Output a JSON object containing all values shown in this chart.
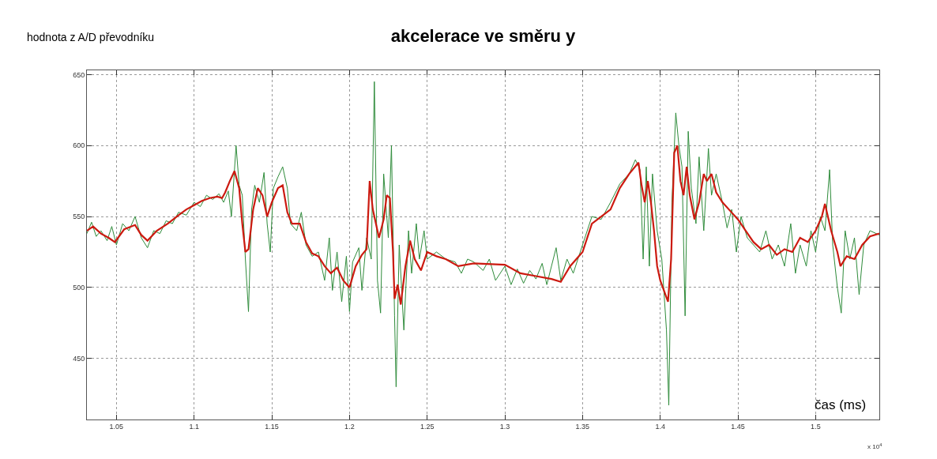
{
  "chart_data": {
    "type": "line",
    "title": "akcelerace ve směru y",
    "ylabel": "hodnota z A/D převodníku",
    "xlabel": "čas (ms)",
    "annotations": [
      "x 10$^{4}$"
    ],
    "xlim": [
      1.031,
      1.541
    ],
    "ylim": [
      407,
      653
    ],
    "xticks": [
      1.05,
      1.1,
      1.15,
      1.2,
      1.25,
      1.3,
      1.35,
      1.4,
      1.45,
      1.5
    ],
    "yticks": [
      450,
      500,
      550,
      600,
      650
    ],
    "grid": true,
    "marker": "none",
    "line_style": "solid",
    "series": [
      {
        "color": "#2e8b3a",
        "x": [
          1.031,
          1.034,
          1.037,
          1.04,
          1.044,
          1.047,
          1.05,
          1.054,
          1.058,
          1.062,
          1.066,
          1.07,
          1.074,
          1.078,
          1.082,
          1.086,
          1.09,
          1.095,
          1.1,
          1.104,
          1.108,
          1.112,
          1.116,
          1.119,
          1.122,
          1.124,
          1.127,
          1.129,
          1.131,
          1.133,
          1.135,
          1.137,
          1.139,
          1.142,
          1.145,
          1.147,
          1.149,
          1.151,
          1.154,
          1.157,
          1.16,
          1.162,
          1.166,
          1.169,
          1.172,
          1.176,
          1.18,
          1.184,
          1.187,
          1.189,
          1.192,
          1.195,
          1.198,
          1.2,
          1.202,
          1.206,
          1.208,
          1.211,
          1.214,
          1.216,
          1.218,
          1.22,
          1.222,
          1.225,
          1.227,
          1.229,
          1.23,
          1.232,
          1.235,
          1.238,
          1.24,
          1.243,
          1.245,
          1.248,
          1.25,
          1.256,
          1.262,
          1.268,
          1.272,
          1.276,
          1.28,
          1.286,
          1.29,
          1.294,
          1.3,
          1.304,
          1.308,
          1.312,
          1.316,
          1.32,
          1.324,
          1.327,
          1.33,
          1.333,
          1.336,
          1.34,
          1.344,
          1.35,
          1.356,
          1.362,
          1.368,
          1.374,
          1.38,
          1.384,
          1.387,
          1.389,
          1.391,
          1.393,
          1.395,
          1.398,
          1.401,
          1.404,
          1.4055,
          1.4075,
          1.41,
          1.412,
          1.414,
          1.416,
          1.418,
          1.42,
          1.423,
          1.425,
          1.428,
          1.431,
          1.433,
          1.436,
          1.44,
          1.443,
          1.446,
          1.449,
          1.452,
          1.456,
          1.46,
          1.464,
          1.468,
          1.472,
          1.476,
          1.48,
          1.484,
          1.487,
          1.49,
          1.494,
          1.497,
          1.5,
          1.503,
          1.506,
          1.509,
          1.511,
          1.514,
          1.5165,
          1.519,
          1.522,
          1.525,
          1.528,
          1.531,
          1.535,
          1.541
        ],
        "values": [
          538,
          546,
          536,
          540,
          533,
          543,
          530,
          545,
          540,
          550,
          535,
          528,
          540,
          538,
          547,
          545,
          553,
          551,
          560,
          557,
          565,
          562,
          566,
          560,
          568,
          550,
          600,
          572,
          565,
          520,
          483,
          555,
          572,
          560,
          581,
          545,
          525,
          570,
          578,
          585,
          570,
          545,
          540,
          553,
          530,
          522,
          525,
          505,
          535,
          498,
          525,
          490,
          522,
          483,
          518,
          528,
          498,
          535,
          520,
          645,
          505,
          482,
          580,
          535,
          600,
          480,
          430,
          530,
          470,
          540,
          510,
          545,
          520,
          540,
          520,
          525,
          520,
          518,
          510,
          520,
          518,
          512,
          520,
          505,
          515,
          502,
          513,
          503,
          512,
          506,
          517,
          502,
          515,
          528,
          505,
          520,
          510,
          530,
          550,
          548,
          560,
          573,
          580,
          590,
          583,
          520,
          585,
          515,
          580,
          540,
          520,
          470,
          417,
          560,
          623,
          600,
          585,
          480,
          610,
          570,
          545,
          592,
          540,
          598,
          565,
          580,
          560,
          542,
          555,
          525,
          550,
          535,
          530,
          525,
          540,
          520,
          530,
          515,
          545,
          510,
          530,
          515,
          540,
          525,
          550,
          540,
          583,
          530,
          500,
          482,
          540,
          520,
          535,
          495,
          530,
          540,
          537
        ]
      },
      {
        "color": "#cc1a10",
        "x": [
          1.031,
          1.035,
          1.04,
          1.045,
          1.049,
          1.055,
          1.062,
          1.066,
          1.07,
          1.076,
          1.083,
          1.09,
          1.095,
          1.1,
          1.105,
          1.11,
          1.115,
          1.118,
          1.12,
          1.123,
          1.126,
          1.129,
          1.131,
          1.133,
          1.135,
          1.138,
          1.141,
          1.144,
          1.147,
          1.15,
          1.154,
          1.157,
          1.16,
          1.163,
          1.168,
          1.172,
          1.176,
          1.18,
          1.184,
          1.188,
          1.192,
          1.196,
          1.2,
          1.204,
          1.208,
          1.211,
          1.213,
          1.215,
          1.219,
          1.222,
          1.224,
          1.226,
          1.228,
          1.229,
          1.231,
          1.233,
          1.236,
          1.239,
          1.242,
          1.246,
          1.25,
          1.256,
          1.262,
          1.27,
          1.28,
          1.3,
          1.31,
          1.32,
          1.33,
          1.336,
          1.342,
          1.35,
          1.356,
          1.362,
          1.368,
          1.374,
          1.38,
          1.386,
          1.388,
          1.39,
          1.392,
          1.394,
          1.396,
          1.398,
          1.4,
          1.405,
          1.407,
          1.409,
          1.411,
          1.413,
          1.415,
          1.417,
          1.419,
          1.422,
          1.425,
          1.428,
          1.43,
          1.433,
          1.436,
          1.44,
          1.445,
          1.45,
          1.455,
          1.46,
          1.465,
          1.47,
          1.475,
          1.48,
          1.485,
          1.49,
          1.495,
          1.5,
          1.504,
          1.506,
          1.51,
          1.514,
          1.516,
          1.52,
          1.525,
          1.53,
          1.535,
          1.541
        ],
        "values": [
          540,
          543,
          538,
          535,
          532,
          541,
          544,
          537,
          533,
          540,
          545,
          551,
          555,
          558,
          561,
          563,
          564,
          563,
          567,
          575,
          582,
          570,
          545,
          525,
          527,
          555,
          570,
          565,
          550,
          560,
          570,
          572,
          553,
          545,
          545,
          532,
          524,
          522,
          515,
          510,
          514,
          505,
          500,
          515,
          523,
          527,
          575,
          555,
          535,
          548,
          565,
          563,
          525,
          492,
          502,
          488,
          515,
          533,
          520,
          512,
          525,
          522,
          520,
          515,
          517,
          516,
          510,
          508,
          506,
          504,
          515,
          525,
          545,
          550,
          555,
          570,
          580,
          588,
          572,
          560,
          575,
          560,
          540,
          515,
          505,
          490,
          520,
          595,
          600,
          575,
          565,
          585,
          565,
          548,
          560,
          580,
          575,
          580,
          567,
          560,
          554,
          548,
          540,
          532,
          527,
          530,
          523,
          527,
          525,
          535,
          532,
          540,
          550,
          559,
          540,
          525,
          515,
          522,
          520,
          530,
          536,
          538
        ]
      }
    ]
  }
}
